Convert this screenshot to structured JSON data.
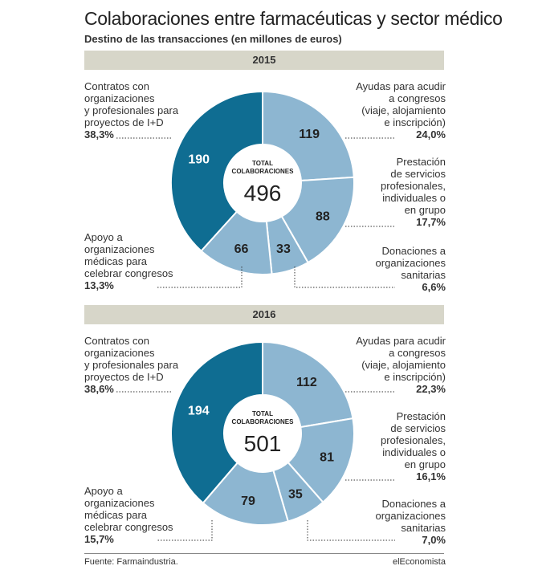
{
  "header": {
    "title": "Colaboraciones entre farmacéuticas y sector médico",
    "subtitle": "Destino de las transacciones (en millones de euros)"
  },
  "colors": {
    "dark": "#0f6d92",
    "light": "#8db6d1",
    "band": "#d7d6c9",
    "separator": "#ffffff"
  },
  "chart_data": [
    {
      "type": "pie",
      "year": "2015",
      "center_label": "TOTAL\nCOLABORACIONES",
      "total": 496,
      "categories": [
        "Ayudas para acudir a congresos (viaje, alojamiento e inscripción)",
        "Prestación de servicios profesionales, individuales o en grupo",
        "Donaciones a organizaciones sanitarias",
        "Apoyo a organizaciones médicas para celebrar congresos",
        "Contratos con organizaciones y profesionales para proyectos de I+D"
      ],
      "values": [
        119,
        88,
        33,
        66,
        190
      ],
      "percents": [
        "24,0%",
        "17,7%",
        "6,6%",
        "13,3%",
        "38,3%"
      ],
      "highlight": [
        false,
        false,
        false,
        false,
        true
      ]
    },
    {
      "type": "pie",
      "year": "2016",
      "center_label": "TOTAL\nCOLABORACIONES",
      "total": 501,
      "categories": [
        "Ayudas para acudir a congresos (viaje, alojamiento e inscripción)",
        "Prestación de servicios profesionales, individuales o en grupo",
        "Donaciones a organizaciones sanitarias",
        "Apoyo a organizaciones médicas para celebrar congresos",
        "Contratos con organizaciones y profesionales para proyectos de I+D"
      ],
      "values": [
        112,
        81,
        35,
        79,
        194
      ],
      "percents": [
        "22,3%",
        "16,1%",
        "7,0%",
        "15,7%",
        "38,6%"
      ],
      "highlight": [
        false,
        false,
        false,
        false,
        true
      ]
    }
  ],
  "labels": {
    "ayudas": [
      "Ayudas para acudir",
      "a congresos",
      "(viaje, alojamiento",
      "e inscripción)"
    ],
    "prestacion": [
      "Prestación",
      "de servicios",
      "profesionales,",
      "individuales o",
      "en grupo"
    ],
    "donaciones": [
      "Donaciones a",
      "organizaciones",
      "sanitarias"
    ],
    "apoyo": [
      "Apoyo a",
      "organizaciones",
      "médicas para",
      "celebrar congresos"
    ],
    "contratos": [
      "Contratos con",
      "organizaciones",
      "y profesionales para",
      "proyectos de I+D"
    ]
  },
  "footer": {
    "source": "Fuente: Farmaindustria.",
    "brand": "elEconomista"
  }
}
